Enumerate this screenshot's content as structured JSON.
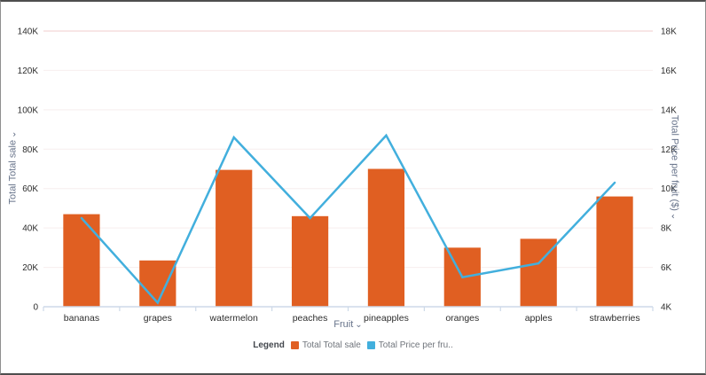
{
  "icons": {
    "chevron_down": "⌄"
  },
  "colors": {
    "bar": "#e05f22",
    "line": "#42afdd",
    "axis_line": "#cdd9e8",
    "grid": "#f8f0f0",
    "grid_top": "#f3d8d8",
    "tick_text": "#2d2d2d",
    "axis_title_text": "#67738a"
  },
  "chart_data": {
    "type": "bar",
    "subtype": "combo-bar-line-dual-axis",
    "title": "",
    "categories": [
      "bananas",
      "grapes",
      "watermelon",
      "peaches",
      "pineapples",
      "oranges",
      "apples",
      "strawberries"
    ],
    "series": [
      {
        "name": "Total Total sale",
        "type": "bar",
        "axis": "left",
        "color": "#e05f22",
        "values": [
          47000,
          23500,
          69500,
          46000,
          70000,
          30000,
          34500,
          56000
        ]
      },
      {
        "name": "Total Price per fruit ($)",
        "type": "line",
        "axis": "right",
        "color": "#42afdd",
        "values": [
          8500,
          4200,
          12600,
          8500,
          12700,
          5500,
          6200,
          10300
        ]
      }
    ],
    "x_axis": {
      "label": "Fruit"
    },
    "left_axis": {
      "label": "Total Total sale",
      "min": 0,
      "max": 140000,
      "tick_values": [
        0,
        20000,
        40000,
        60000,
        80000,
        100000,
        120000,
        140000
      ],
      "tick_labels": [
        "0",
        "20K",
        "40K",
        "60K",
        "80K",
        "100K",
        "120K",
        "140K"
      ]
    },
    "right_axis": {
      "label": "Total Price per fruit ($)",
      "min": 4000,
      "max": 18000,
      "tick_values": [
        4000,
        6000,
        8000,
        10000,
        12000,
        14000,
        16000,
        18000
      ],
      "tick_labels": [
        "4K",
        "6K",
        "8K",
        "10K",
        "12K",
        "14K",
        "16K",
        "18K"
      ]
    },
    "legend": {
      "title": "Legend",
      "position": "bottom",
      "items": [
        {
          "label": "Total Total sale",
          "color": "#e05f22"
        },
        {
          "label": "Total Price per fru..",
          "color": "#42afdd"
        }
      ]
    },
    "grid": true
  }
}
